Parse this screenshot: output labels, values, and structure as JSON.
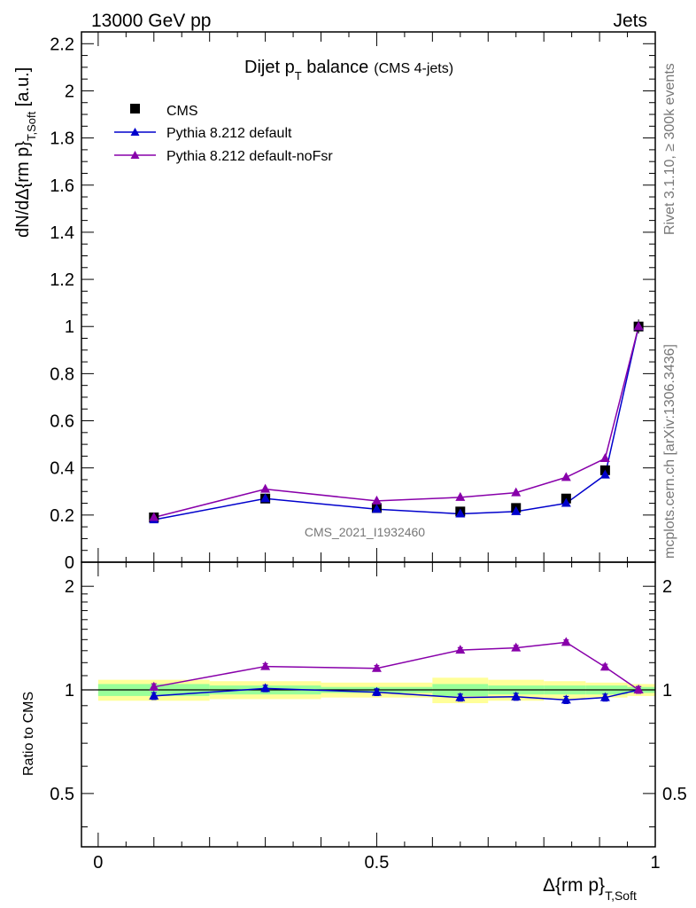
{
  "header": {
    "left": "13000 GeV pp",
    "right": "Jets"
  },
  "side_labels": {
    "rivet": "Rivet 3.1.10, ≥ 300k events",
    "mcplots": "mcplots.cern.ch [arXiv:1306.3436]"
  },
  "chart_data": {
    "type": "line",
    "title": {
      "main": "Dijet p",
      "sub": "T",
      "tail": " balance",
      "note": "(CMS 4-jets)"
    },
    "watermark": "CMS_2021_I1932460",
    "ylabel": {
      "main": "dN/dΔ{rm p}",
      "sub": "T,Soft",
      "unit": " [a.u.]"
    },
    "xlabel": {
      "main": "Δ{rm p}",
      "sub": "T,Soft"
    },
    "ratio_ylabel": "Ratio to CMS",
    "xlim": [
      -0.03,
      1.0
    ],
    "ylim": [
      0,
      2.25
    ],
    "ratio_ylim": [
      0.35,
      2.35
    ],
    "x_ticks": [
      "0",
      "0.5",
      "1"
    ],
    "y_ticks": [
      "0",
      "0.2",
      "0.4",
      "0.6",
      "0.8",
      "1",
      "1.2",
      "1.4",
      "1.6",
      "1.8",
      "2",
      "2.2"
    ],
    "ratio_y_ticks": [
      "0.5",
      "1",
      "2"
    ],
    "bins": [
      {
        "lo": 0.0,
        "hi": 0.2
      },
      {
        "lo": 0.2,
        "hi": 0.4
      },
      {
        "lo": 0.4,
        "hi": 0.6
      },
      {
        "lo": 0.6,
        "hi": 0.7
      },
      {
        "lo": 0.7,
        "hi": 0.8
      },
      {
        "lo": 0.8,
        "hi": 0.875
      },
      {
        "lo": 0.875,
        "hi": 0.95
      },
      {
        "lo": 0.95,
        "hi": 1.0
      }
    ],
    "x": [
      0.1,
      0.3,
      0.5,
      0.65,
      0.75,
      0.84,
      0.91,
      0.97
    ],
    "reference": {
      "name": "CMS",
      "color": "#000000",
      "values": [
        0.19,
        0.27,
        0.23,
        0.215,
        0.23,
        0.27,
        0.39,
        1.0
      ]
    },
    "series": [
      {
        "name": "Pythia 8.212 default",
        "color": "#0000cc",
        "values": [
          0.18,
          0.27,
          0.225,
          0.205,
          0.215,
          0.25,
          0.37,
          1.0
        ],
        "ratio": [
          0.96,
          1.01,
          0.985,
          0.95,
          0.955,
          0.935,
          0.95,
          1.0
        ]
      },
      {
        "name": "Pythia 8.212 default-noFsr",
        "color": "#8800aa",
        "values": [
          0.19,
          0.31,
          0.26,
          0.275,
          0.295,
          0.36,
          0.44,
          1.0
        ],
        "ratio": [
          1.02,
          1.17,
          1.155,
          1.305,
          1.325,
          1.375,
          1.165,
          1.0
        ]
      }
    ],
    "bands": {
      "stat_color": "#99ff99",
      "syst_color": "#ffff99",
      "stat": [
        0.04,
        0.03,
        0.02,
        0.04,
        0.03,
        0.03,
        0.03,
        0.02
      ],
      "total": [
        0.07,
        0.06,
        0.05,
        0.085,
        0.07,
        0.06,
        0.05,
        0.04
      ]
    },
    "legend_position": "top-left",
    "grid": false
  }
}
